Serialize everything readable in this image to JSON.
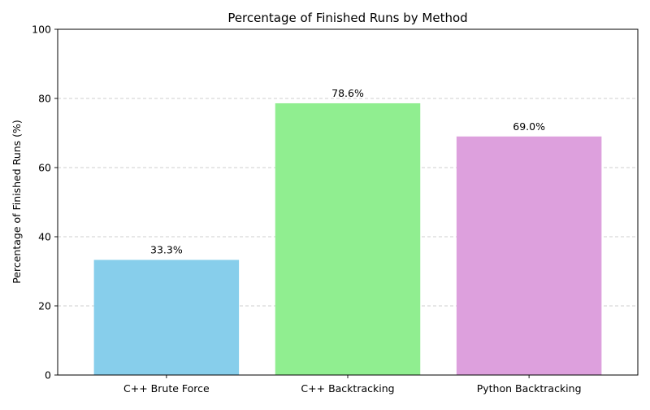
{
  "chart_data": {
    "type": "bar",
    "title": "Percentage of Finished Runs by Method",
    "xlabel": "",
    "ylabel": "Percentage of Finished Runs (%)",
    "categories": [
      "C++ Brute Force",
      "C++ Backtracking",
      "Python Backtracking"
    ],
    "values": [
      33.3,
      78.6,
      69.0
    ],
    "value_labels": [
      "33.3%",
      "78.6%",
      "69.0%"
    ],
    "colors": [
      "#87ceeb",
      "#90ee90",
      "#dda0dd"
    ],
    "ylim": [
      0,
      100
    ],
    "yticks": [
      0,
      20,
      40,
      60,
      80,
      100
    ],
    "grid": "y-dashed",
    "legend": "none"
  }
}
